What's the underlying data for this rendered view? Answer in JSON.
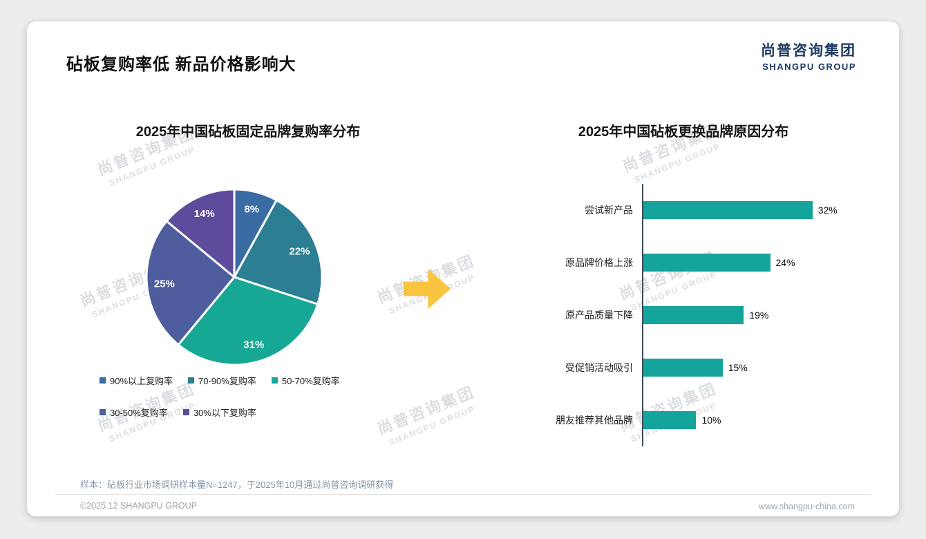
{
  "page": {
    "title": "砧板复购率低 新品价格影响大",
    "logo": {
      "cn": "尚普咨询集团",
      "en": "SHANGPU GROUP"
    },
    "watermark": {
      "cn": "尚普咨询集团",
      "en": "SHANGPU GROUP"
    },
    "footer": {
      "note": "样本：砧板行业市场调研样本量N=1247，于2025年10月通过尚普咨询调研获得",
      "copyright": "©2025.12 SHANGPU GROUP",
      "website": "www.shangpu-china.com"
    }
  },
  "arrow_color": "#f9c440",
  "chart_data": [
    {
      "type": "pie",
      "title": "2025年中国砧板固定品牌复购率分布",
      "labels": [
        "90%以上复购率",
        "70-90%复购率",
        "50-70%复购率",
        "30-50%复购率",
        "30%以下复购率"
      ],
      "values": [
        8,
        22,
        31,
        25,
        14
      ],
      "value_labels": [
        "8%",
        "22%",
        "31%",
        "25%",
        "14%"
      ],
      "colors": [
        "#3a6ba3",
        "#2c7f93",
        "#17a795",
        "#4d5d9e",
        "#5e4b9b"
      ],
      "legend_position": "bottom",
      "start_angle": -90,
      "direction": "clockwise"
    },
    {
      "type": "bar",
      "orientation": "horizontal",
      "title": "2025年中国砧板更换品牌原因分布",
      "categories": [
        "尝试新产品",
        "原品牌价格上涨",
        "原产品质量下降",
        "受促销活动吸引",
        "朋友推荐其他品牌"
      ],
      "values": [
        32,
        24,
        19,
        15,
        10
      ],
      "value_labels": [
        "32%",
        "24%",
        "19%",
        "15%",
        "10%"
      ],
      "bar_color": "#14a49c",
      "xlim": [
        0,
        34
      ],
      "grid": false,
      "legend": false
    }
  ]
}
